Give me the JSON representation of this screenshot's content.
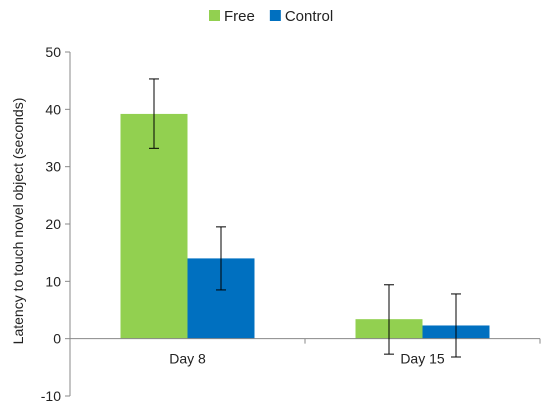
{
  "chart_data": {
    "type": "bar",
    "categories": [
      "Day 8",
      "Day 15"
    ],
    "series": [
      {
        "name": "Free",
        "color": "#92D050",
        "values": [
          39.2,
          3.4
        ],
        "error_low": [
          33.2,
          -2.7
        ],
        "error_high": [
          45.3,
          9.4
        ]
      },
      {
        "name": "Control",
        "color": "#0070C0",
        "values": [
          14.0,
          2.3
        ],
        "error_low": [
          8.5,
          -3.2
        ],
        "error_high": [
          19.5,
          7.8
        ]
      }
    ],
    "ylabel": "Latency to touch novel object (seconds)",
    "xlabel": "",
    "ylim": [
      -10,
      50
    ],
    "yticks": [
      -10,
      0,
      10,
      20,
      30,
      40,
      50
    ],
    "grid": false,
    "legend_position": "top-center"
  }
}
